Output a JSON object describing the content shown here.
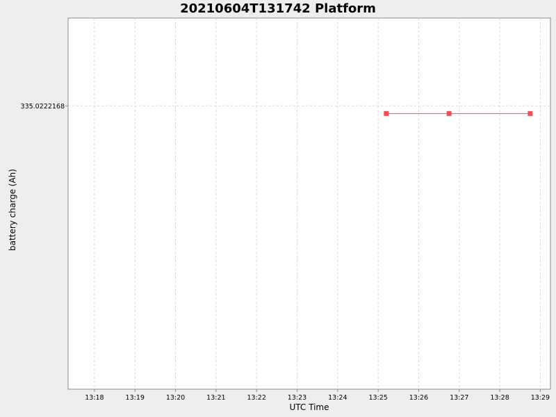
{
  "chart_data": {
    "type": "line",
    "title": "20210604T131742 Platform",
    "xlabel": "UTC Time",
    "ylabel": "battery charge (Ah)",
    "x_ticks": [
      "13:18",
      "13:19",
      "13:20",
      "13:21",
      "13:22",
      "13:23",
      "13:24",
      "13:25",
      "13:26",
      "13:27",
      "13:28",
      "13:29"
    ],
    "y_ticks": [
      "335.0222168"
    ],
    "xlim": [
      "13:17:21",
      "13:29:15"
    ],
    "grid": true,
    "series": [
      {
        "color": "#f05050",
        "marker": "square",
        "x": [
          "13:25:12",
          "13:26:45",
          "13:28:45"
        ],
        "y": [
          335.022,
          335.022,
          335.022
        ]
      }
    ]
  }
}
